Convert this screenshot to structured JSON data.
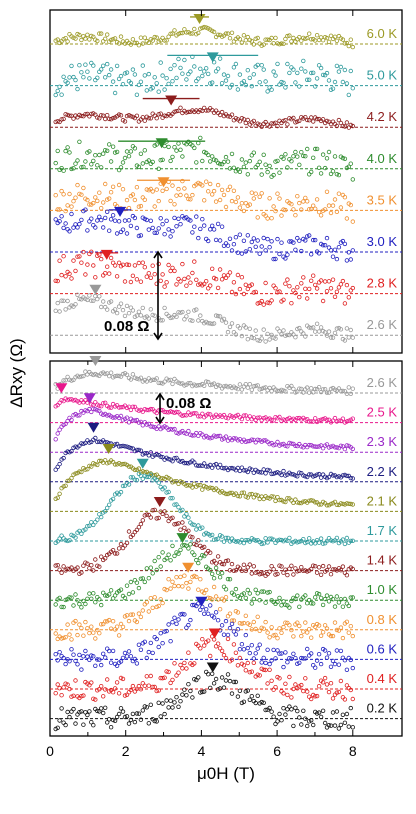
{
  "chart_data": {
    "type": "scatter",
    "xlabel": "μ0H (T)",
    "ylabel": "ΔRxy (Ω)",
    "xlim": [
      0,
      9.3
    ],
    "x_ticks": [
      "0",
      "2",
      "4",
      "6",
      "8"
    ],
    "x_tick_values": [
      0,
      2,
      4,
      6,
      8
    ],
    "grid": false,
    "panels": [
      {
        "name": "top",
        "scale_bar": "0.08 Ω",
        "series": [
          {
            "label": "6.0 K",
            "color": "#9c9a26",
            "peak": 3.95,
            "peak_err": 0.25,
            "amp": 0.008,
            "noise": 0.004,
            "shape": "flat"
          },
          {
            "label": "5.0 K",
            "color": "#2e9a9c",
            "peak": 4.3,
            "peak_err": 1.2,
            "amp": 0.012,
            "noise": 0.014,
            "shape": "flat"
          },
          {
            "label": "4.2 K",
            "color": "#8c1c1c",
            "peak": 3.2,
            "peak_err": 0.75,
            "amp": 0.013,
            "noise": 0.003,
            "shape": "flat"
          },
          {
            "label": "4.0 K",
            "color": "#2e8c2e",
            "peak": 2.95,
            "peak_err": 1.15,
            "amp": 0.014,
            "noise": 0.012,
            "shape": "flat"
          },
          {
            "label": "3.5 K",
            "color": "#f09030",
            "peak": 3.0,
            "peak_err": 0.7,
            "amp": 0.016,
            "noise": 0.012,
            "shape": "flat"
          },
          {
            "label": "3.0 K",
            "color": "#2020c0",
            "peak": 1.85,
            "peak_err": 0.3,
            "amp": 0.028,
            "noise": 0.01,
            "shape": "flat"
          },
          {
            "label": "2.8 K",
            "color": "#e02020",
            "peak": 1.5,
            "peak_err": 0.3,
            "amp": 0.024,
            "noise": 0.012,
            "shape": "flat"
          },
          {
            "label": "2.6 K",
            "color": "#999999",
            "peak": 1.2,
            "peak_err": 0.0,
            "amp": 0.028,
            "noise": 0.006,
            "shape": "flat"
          }
        ]
      },
      {
        "name": "bottom",
        "scale_bar": "0.08 Ω",
        "series": [
          {
            "label": "2.6 K",
            "color": "#999999",
            "peak": 1.2,
            "amp": 0.02,
            "noise": 0.003,
            "shape": "decay"
          },
          {
            "label": "2.5 K",
            "color": "#e8188c",
            "peak": 0.3,
            "amp": 0.024,
            "noise": 0.002,
            "shape": "decay"
          },
          {
            "label": "2.3 K",
            "color": "#9a28c8",
            "peak": 1.05,
            "amp": 0.042,
            "noise": 0.002,
            "shape": "decay"
          },
          {
            "label": "2.2 K",
            "color": "#1c1c80",
            "peak": 1.15,
            "amp": 0.042,
            "noise": 0.002,
            "shape": "decay"
          },
          {
            "label": "2.1 K",
            "color": "#8a8a1c",
            "peak": 1.55,
            "amp": 0.05,
            "noise": 0.002,
            "shape": "decay"
          },
          {
            "label": "1.7 K",
            "color": "#2e9a9c",
            "peak": 2.45,
            "amp": 0.06,
            "noise": 0.003,
            "shape": "peak"
          },
          {
            "label": "1.4 K",
            "color": "#8c1c1c",
            "peak": 2.9,
            "amp": 0.052,
            "noise": 0.005,
            "shape": "peak"
          },
          {
            "label": "1.0 K",
            "color": "#2e8c2e",
            "peak": 3.5,
            "amp": 0.046,
            "noise": 0.007,
            "shape": "peak"
          },
          {
            "label": "0.8 K",
            "color": "#f09030",
            "peak": 3.65,
            "amp": 0.046,
            "noise": 0.009,
            "shape": "peak"
          },
          {
            "label": "0.6 K",
            "color": "#2020c0",
            "peak": 4.0,
            "amp": 0.042,
            "noise": 0.01,
            "shape": "peak"
          },
          {
            "label": "0.4 K",
            "color": "#e02020",
            "peak": 4.35,
            "amp": 0.04,
            "noise": 0.01,
            "shape": "peak"
          },
          {
            "label": "0.2 K",
            "color": "#111111",
            "peak": 4.3,
            "amp": 0.036,
            "noise": 0.01,
            "shape": "peak"
          }
        ]
      }
    ]
  }
}
